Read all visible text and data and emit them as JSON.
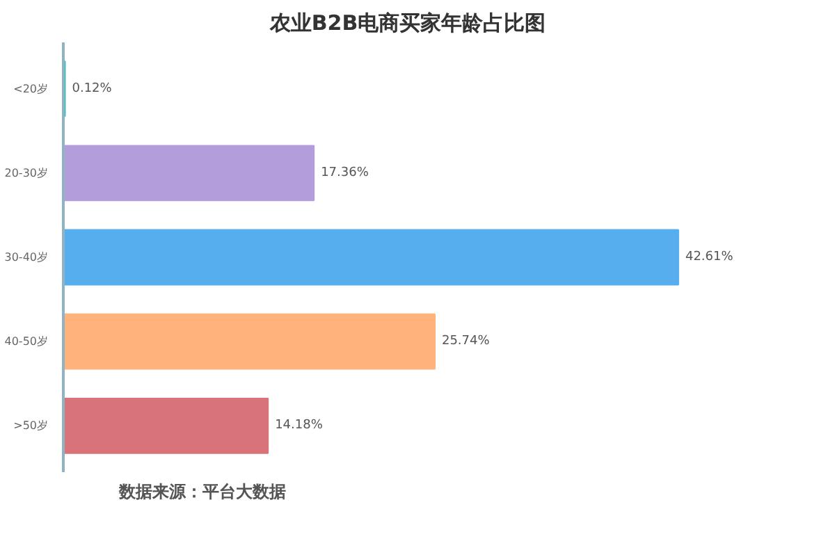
{
  "chart_data": {
    "type": "bar",
    "orientation": "horizontal",
    "title": "农业B2B电商买家年龄占比图",
    "categories": [
      "<20岁",
      "20-30岁",
      "30-40岁",
      "40-50岁",
      ">50岁"
    ],
    "values": [
      0.12,
      17.36,
      42.61,
      25.74,
      14.18
    ],
    "colors": [
      "#2ec4c6",
      "#b39ddb",
      "#56aeee",
      "#ffb27a",
      "#d9737a"
    ],
    "value_labels": [
      "0.12%",
      "17.36%",
      "42.61%",
      "25.74%",
      "14.18%"
    ],
    "grid": false,
    "annotations": [
      "数据来源：平台大数据"
    ]
  }
}
